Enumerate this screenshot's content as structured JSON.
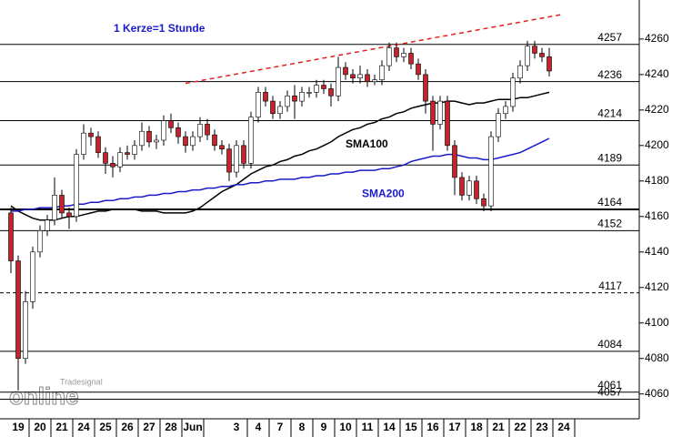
{
  "chart_data": {
    "type": "candlestick",
    "annotations": [
      "1 Kerze=1 Stunde"
    ],
    "watermark": [
      "Tradesignal",
      "online"
    ],
    "categories": [
      null,
      "19",
      null,
      null,
      "20",
      null,
      null,
      "21",
      null,
      null,
      "24",
      null,
      null,
      "25",
      null,
      null,
      "26",
      null,
      null,
      "27",
      null,
      null,
      "28",
      null,
      null,
      "Jun",
      null,
      null,
      null,
      null,
      null,
      "3",
      null,
      null,
      "4",
      null,
      null,
      "7",
      null,
      null,
      "8",
      null,
      null,
      "9",
      null,
      null,
      "10",
      null,
      null,
      "11",
      null,
      null,
      "14",
      null,
      null,
      "15",
      null,
      null,
      "16",
      null,
      null,
      "17",
      null,
      null,
      "18",
      null,
      null,
      "21",
      null,
      null,
      "22",
      null,
      null,
      "23",
      null,
      null,
      "24"
    ],
    "open": [
      4162,
      4135,
      4080,
      4112,
      4140,
      4152,
      4158,
      4172,
      4162,
      4160,
      4195,
      4207,
      4205,
      4196,
      4190,
      4188,
      4196,
      4195,
      4200,
      4208,
      4202,
      4203,
      4214,
      4210,
      4205,
      4200,
      4205,
      4212,
      4206,
      4200,
      4198,
      4185,
      4200,
      4190,
      4216,
      4230,
      4225,
      4218,
      4222,
      4228,
      4225,
      4230,
      4230,
      4234,
      4232,
      4228,
      4244,
      4240,
      4238,
      4240,
      4236,
      4237,
      4245,
      4255,
      4250,
      4252,
      4246,
      4240,
      4225,
      4212,
      4225,
      4200,
      4182,
      4172,
      4180,
      4170,
      4166,
      4205,
      4218,
      4222,
      4238,
      4245,
      4256,
      4252,
      4250,
      null,
      null
    ],
    "high": [
      4165,
      4138,
      4118,
      4143,
      4155,
      4161,
      4182,
      4175,
      4165,
      4198,
      4212,
      4210,
      4208,
      4199,
      4194,
      4199,
      4200,
      4203,
      4213,
      4211,
      4206,
      4217,
      4218,
      4213,
      4208,
      4208,
      4216,
      4215,
      4209,
      4203,
      4201,
      4203,
      4203,
      4219,
      4233,
      4233,
      4228,
      4225,
      4231,
      4234,
      4233,
      4233,
      4237,
      4237,
      4235,
      4250,
      4247,
      4243,
      4245,
      4243,
      4240,
      4248,
      4258,
      4258,
      4255,
      4255,
      4249,
      4243,
      4228,
      4228,
      4228,
      4203,
      4185,
      4183,
      4183,
      4173,
      4208,
      4221,
      4225,
      4241,
      4248,
      4259,
      4259,
      4255,
      4255,
      null,
      null
    ],
    "low": [
      4128,
      4062,
      4077,
      4108,
      4137,
      4149,
      4155,
      4159,
      4153,
      4157,
      4192,
      4200,
      4193,
      4184,
      4182,
      4185,
      4192,
      4192,
      4197,
      4199,
      4198,
      4200,
      4207,
      4201,
      4196,
      4197,
      4202,
      4203,
      4197,
      4195,
      4180,
      4182,
      4187,
      4187,
      4213,
      4222,
      4215,
      4215,
      4219,
      4215,
      4222,
      4227,
      4227,
      4229,
      4222,
      4225,
      4237,
      4235,
      4235,
      4233,
      4234,
      4234,
      4242,
      4247,
      4247,
      4243,
      4237,
      4218,
      4197,
      4209,
      4197,
      4172,
      4169,
      4169,
      4167,
      4163,
      4163,
      4202,
      4215,
      4219,
      4235,
      4242,
      4249,
      4247,
      4239,
      null,
      null
    ],
    "close": [
      4135,
      4080,
      4112,
      4140,
      4152,
      4158,
      4172,
      4162,
      4160,
      4195,
      4207,
      4205,
      4196,
      4190,
      4188,
      4196,
      4195,
      4200,
      4208,
      4202,
      4203,
      4214,
      4210,
      4205,
      4200,
      4205,
      4212,
      4206,
      4200,
      4198,
      4185,
      4200,
      4190,
      4216,
      4230,
      4225,
      4218,
      4222,
      4228,
      4225,
      4230,
      4230,
      4234,
      4232,
      4228,
      4244,
      4240,
      4238,
      4240,
      4236,
      4237,
      4245,
      4255,
      4250,
      4252,
      4246,
      4240,
      4225,
      4212,
      4225,
      4200,
      4182,
      4172,
      4180,
      4170,
      4166,
      4205,
      4218,
      4222,
      4238,
      4245,
      4256,
      4252,
      4250,
      4242,
      null,
      null
    ],
    "up_color": "#ffffff",
    "down_color": "#c0272d",
    "series": [
      {
        "name": "SMA100",
        "color": "#000000",
        "values": [
          4166,
          4163,
          4161,
          4159,
          4158,
          4158,
          4158,
          4159,
          4160,
          4160,
          4161,
          4162,
          4163,
          4163,
          4164,
          4164,
          4164,
          4164,
          4163,
          4163,
          4163,
          4162,
          4162,
          4162,
          4162,
          4163,
          4165,
          4168,
          4171,
          4174,
          4176,
          4178,
          4181,
          4184,
          4186,
          4188,
          4189,
          4191,
          4192,
          4194,
          4195,
          4197,
          4198,
          4200,
          4202,
          4205,
          4207,
          4209,
          4210,
          4212,
          4213,
          4215,
          4216,
          4218,
          4219,
          4221,
          4222,
          4223,
          4224,
          4224,
          4225,
          4225,
          4224,
          4223,
          4224,
          4224,
          4225,
          4226,
          4226,
          4226,
          4227,
          4227,
          4228,
          4229,
          4230,
          null,
          null
        ]
      },
      {
        "name": "SMA200",
        "color": "#1a1acc",
        "values": [
          4163,
          4163,
          4164,
          4164,
          4165,
          4165,
          4165,
          4166,
          4166,
          4167,
          4167,
          4168,
          4168,
          4169,
          4169,
          4170,
          4170,
          4171,
          4171,
          4172,
          4172,
          4173,
          4173,
          4174,
          4174,
          4175,
          4175,
          4176,
          4176,
          4177,
          4177,
          4178,
          4178,
          4179,
          4179,
          4180,
          4180,
          4181,
          4181,
          4181,
          4182,
          4182,
          4183,
          4183,
          4184,
          4184,
          4185,
          4185,
          4186,
          4186,
          4186,
          4187,
          4187,
          4188,
          4189,
          4191,
          4192,
          4193,
          4194,
          4194,
          4195,
          4195,
          4194,
          4193,
          4193,
          4192,
          4192,
          4193,
          4194,
          4195,
          4196,
          4198,
          4200,
          4202,
          4204,
          null,
          null
        ]
      }
    ],
    "trendline": {
      "color": "#e02020",
      "values": [
        null,
        null,
        null,
        null,
        null,
        null,
        null,
        null,
        null,
        null,
        null,
        null,
        null,
        null,
        null,
        null,
        null,
        null,
        null,
        null,
        null,
        null,
        null,
        null,
        4235.0,
        4235.8,
        4236.5,
        4237.3,
        4238.0,
        4238.8,
        4239.5,
        4240.3,
        4241.0,
        4241.8,
        4242.5,
        4243.3,
        4244.0,
        4244.8,
        4245.5,
        4246.3,
        4247.0,
        4247.8,
        4248.5,
        4249.3,
        4250.0,
        4250.8,
        4251.5,
        4252.3,
        4253.0,
        4253.8,
        4254.5,
        4255.3,
        4256.0,
        4256.8,
        4257.5,
        4258.3,
        4259.0,
        4259.8,
        4260.5,
        4261.3,
        4262.0,
        4262.8,
        4263.5,
        4264.3,
        4265.0,
        4265.8,
        4266.5,
        4267.3,
        4268.0,
        4268.8,
        4269.5,
        4270.3,
        4271.0,
        4271.8,
        4272.5,
        4273.3,
        4274.0
      ]
    },
    "levels": [
      4257,
      4236,
      4214,
      4189,
      4164,
      4152,
      4084,
      4061,
      4057
    ],
    "dashed_levels": [
      4117
    ],
    "ylim": [
      4046,
      4282
    ],
    "yticks": [
      4060,
      4080,
      4100,
      4120,
      4140,
      4160,
      4180,
      4200,
      4220,
      4240,
      4260
    ]
  }
}
